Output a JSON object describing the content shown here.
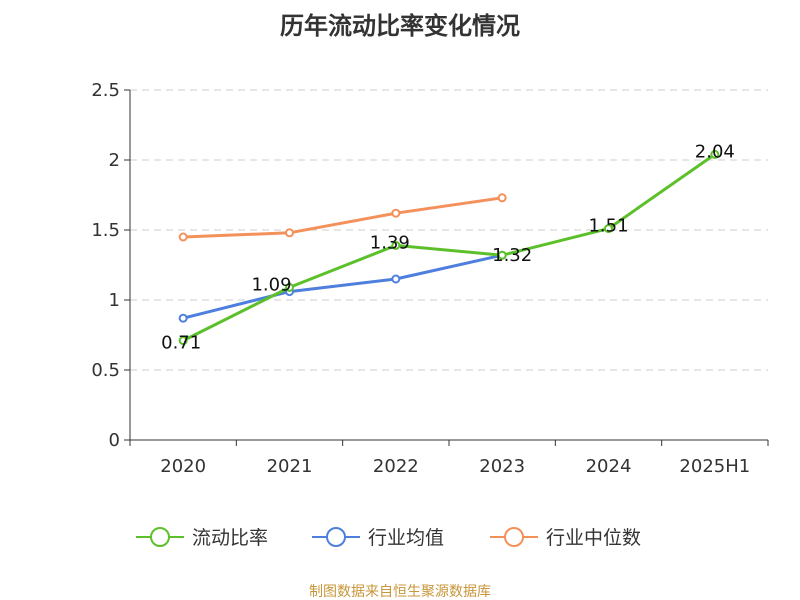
{
  "chart_data": {
    "type": "line",
    "title": "历年流动比率变化情况",
    "categories": [
      "2020",
      "2021",
      "2022",
      "2023",
      "2024",
      "2025H1"
    ],
    "ylim": [
      0,
      2.5
    ],
    "yticks": [
      "0",
      "0.5",
      "1",
      "1.5",
      "2",
      "2.5"
    ],
    "grid": true,
    "legend_position": "bottom",
    "series": [
      {
        "name": "流动比率",
        "color": "#5cc02a",
        "values": [
          0.71,
          1.09,
          1.39,
          1.32,
          1.51,
          2.04
        ],
        "labels": [
          "0.71",
          "1.09",
          "1.39",
          "1.32",
          "1.51",
          "2.04"
        ]
      },
      {
        "name": "行业均值",
        "color": "#4f7fde",
        "values": [
          0.87,
          1.06,
          1.15,
          1.32,
          null,
          null
        ]
      },
      {
        "name": "行业中位数",
        "color": "#f4905a",
        "values": [
          1.45,
          1.48,
          1.62,
          1.73,
          null,
          null
        ]
      }
    ],
    "source": "制图数据来自恒生聚源数据库"
  }
}
